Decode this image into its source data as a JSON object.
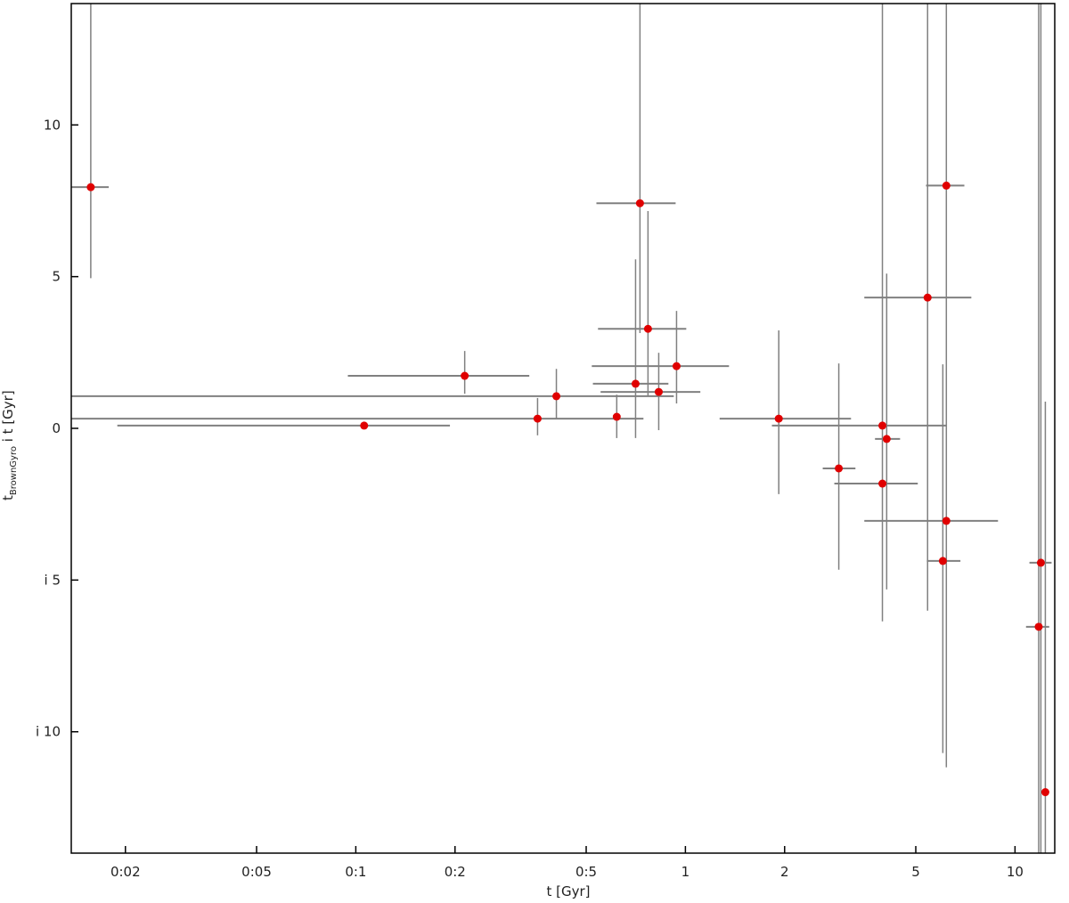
{
  "chart_data": {
    "type": "scatter",
    "xlabel": "t  [Gyr]",
    "ylabel": [
      "t",
      "BrownGyro",
      " i   t  [Gyr]"
    ],
    "xscale": "log",
    "xlim": [
      0.0137,
      13.2
    ],
    "ylim": [
      -14,
      14
    ],
    "xticks": [
      {
        "value": 0.02,
        "label": "0:02"
      },
      {
        "value": 0.05,
        "label": "0:05"
      },
      {
        "value": 0.1,
        "label": "0:1"
      },
      {
        "value": 0.2,
        "label": "0:2"
      },
      {
        "value": 0.5,
        "label": "0:5"
      },
      1,
      2,
      5,
      10
    ],
    "yticks": [
      {
        "value": -10,
        "label": "i 10"
      },
      {
        "value": -5,
        "label": "i 5"
      },
      0,
      5,
      10
    ],
    "color": "#e00000",
    "errorbar_color": "#808080",
    "x": [
      0.0157,
      0.106,
      0.214,
      0.356,
      0.406,
      0.619,
      0.706,
      0.728,
      0.77,
      0.83,
      0.94,
      1.92,
      2.92,
      3.96,
      4.08,
      3.96,
      5.43,
      6.19,
      6.19,
      6.04,
      11.98,
      11.8,
      12.36
    ],
    "values": [
      7.95,
      0.09,
      1.73,
      0.32,
      1.06,
      0.38,
      1.47,
      7.42,
      3.28,
      1.2,
      2.05,
      0.32,
      -1.32,
      0.09,
      -0.35,
      -1.82,
      4.31,
      8.0,
      -3.05,
      -4.37,
      -4.43,
      -6.54,
      -11.99
    ],
    "x_low": [
      0.0137,
      0.0189,
      0.0946,
      0.0137,
      0.0137,
      null,
      0.524,
      0.537,
      0.543,
      0.553,
      0.52,
      1.27,
      2.61,
      1.83,
      3.76,
      2.83,
      3.49,
      5.37,
      3.49,
      5.4,
      11.06,
      10.8,
      null
    ],
    "x_high": [
      0.0178,
      0.193,
      0.336,
      0.746,
      0.922,
      null,
      0.888,
      0.934,
      1.006,
      1.11,
      1.356,
      3.18,
      3.28,
      6.19,
      4.48,
      5.07,
      7.37,
      7.02,
      8.88,
      6.83,
      12.91,
      12.7,
      null
    ],
    "y_low": [
      4.95,
      null,
      1.14,
      -0.23,
      0.32,
      -0.32,
      -0.32,
      3.14,
      1.06,
      -0.06,
      0.82,
      -2.17,
      -4.66,
      -6.36,
      -5.31,
      null,
      -6.01,
      -11.17,
      null,
      -10.7,
      -16,
      -16,
      -16
    ],
    "y_high": [
      16,
      null,
      2.55,
      1.0,
      1.96,
      1.11,
      5.57,
      16,
      7.16,
      2.49,
      3.87,
      3.23,
      2.14,
      16,
      5.1,
      null,
      16,
      16,
      null,
      2.11,
      16,
      16,
      0.88
    ]
  }
}
